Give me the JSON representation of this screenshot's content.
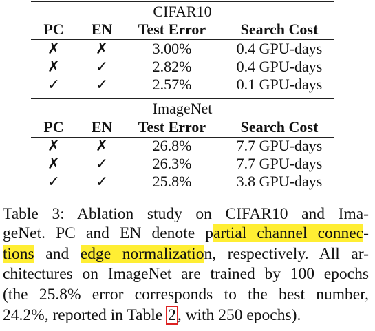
{
  "sections": [
    {
      "title": "CIFAR10",
      "header": [
        "PC",
        "EN",
        "Test Error",
        "Search Cost"
      ],
      "rows": [
        [
          "✗",
          "✗",
          "3.00%",
          "0.4 GPU-days"
        ],
        [
          "✗",
          "✓",
          "2.82%",
          "0.4 GPU-days"
        ],
        [
          "✓",
          "✓",
          "2.57%",
          "0.1 GPU-days"
        ]
      ]
    },
    {
      "title": "ImageNet",
      "header": [
        "PC",
        "EN",
        "Test Error",
        "Search Cost"
      ],
      "rows": [
        [
          "✗",
          "✗",
          "26.8%",
          "7.7 GPU-days"
        ],
        [
          "✗",
          "✓",
          "26.3%",
          "7.7 GPU-days"
        ],
        [
          "✓",
          "✓",
          "25.8%",
          "3.8 GPU-days"
        ]
      ]
    }
  ],
  "caption": {
    "lines": [
      [
        {
          "text": "Table 3: Ablation study on CIFAR10 and Ima-"
        }
      ],
      [
        {
          "text": "geNet. PC and EN denote p"
        },
        {
          "text": "artial channel connec",
          "highlight": true
        },
        {
          "text": "-"
        }
      ],
      [
        {
          "text": "tions",
          "highlight": true
        },
        {
          "text": " and "
        },
        {
          "text": "edge normalizatio",
          "highlight": true
        },
        {
          "text": "n, respectively. All ar-"
        }
      ],
      [
        {
          "text": "chitectures on ImageNet are trained by 100 epochs"
        }
      ],
      [
        {
          "text": "(the 25.8% error corresponds to the best number,"
        }
      ],
      [
        {
          "text": "24.2%, reported in Table "
        },
        {
          "text": "2",
          "boxed": true
        },
        {
          "text": ", with 250 epochs)."
        }
      ]
    ]
  }
}
